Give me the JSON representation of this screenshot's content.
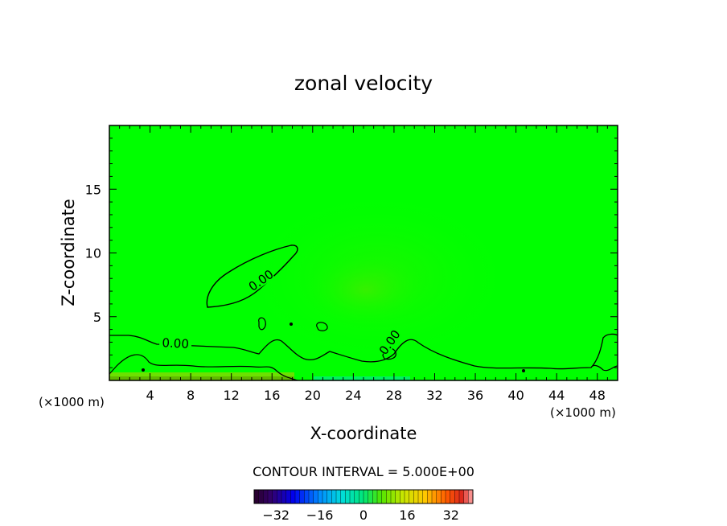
{
  "chart_data": {
    "type": "heatmap",
    "title": "zonal velocity",
    "xlabel": "X-coordinate",
    "ylabel": "Z-coordinate",
    "x_unit": "(×1000 m)",
    "xlim": [
      0,
      50
    ],
    "ylim": [
      0,
      20
    ],
    "x_ticks": [
      4,
      8,
      12,
      16,
      20,
      24,
      28,
      32,
      36,
      40,
      44,
      48
    ],
    "y_ticks": [
      5,
      10,
      15
    ],
    "contour_interval_text": "CONTOUR INTERVAL = 5.000E+00",
    "contour_labels": [
      "0.00",
      "0.00",
      "0.00"
    ],
    "colorbar": {
      "min": -40,
      "max": 40,
      "ticks": [
        -32,
        -16,
        0,
        16,
        32
      ]
    },
    "colors": {
      "field_background": "#00ff00",
      "weak_positive_region": "#2bf200",
      "near_surface_strip": "#88dd00",
      "contour_line": "#000000"
    }
  }
}
